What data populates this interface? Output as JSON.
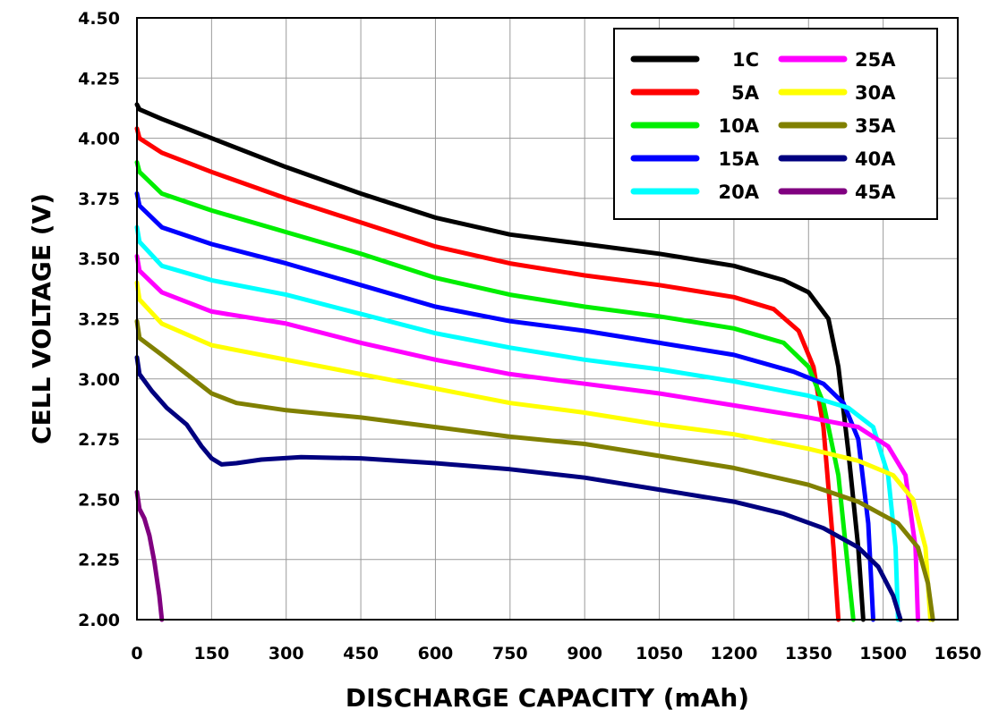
{
  "chart_data": {
    "type": "line",
    "title": "",
    "xlabel": "DISCHARGE CAPACITY (mAh)",
    "ylabel": "CELL VOLTAGE (V)",
    "xlim": [
      0,
      1650
    ],
    "ylim": [
      2.0,
      4.5
    ],
    "xticks": [
      0,
      150,
      300,
      450,
      600,
      750,
      900,
      1050,
      1200,
      1350,
      1500,
      1650
    ],
    "yticks": [
      "2.00",
      "2.25",
      "2.50",
      "2.75",
      "3.00",
      "3.25",
      "3.50",
      "3.75",
      "4.00",
      "4.25",
      "4.50"
    ],
    "grid": true,
    "legend_position": "top-right",
    "series": [
      {
        "name": "1C",
        "color": "#000000",
        "points": [
          [
            0,
            4.14
          ],
          [
            5,
            4.12
          ],
          [
            50,
            4.08
          ],
          [
            150,
            4.0
          ],
          [
            300,
            3.88
          ],
          [
            450,
            3.77
          ],
          [
            600,
            3.67
          ],
          [
            750,
            3.6
          ],
          [
            900,
            3.56
          ],
          [
            1050,
            3.52
          ],
          [
            1200,
            3.47
          ],
          [
            1300,
            3.41
          ],
          [
            1350,
            3.36
          ],
          [
            1390,
            3.25
          ],
          [
            1410,
            3.05
          ],
          [
            1430,
            2.7
          ],
          [
            1450,
            2.3
          ],
          [
            1460,
            2.0
          ]
        ]
      },
      {
        "name": "5A",
        "color": "#ff0000",
        "points": [
          [
            0,
            4.04
          ],
          [
            5,
            4.0
          ],
          [
            50,
            3.94
          ],
          [
            150,
            3.86
          ],
          [
            300,
            3.75
          ],
          [
            450,
            3.65
          ],
          [
            600,
            3.55
          ],
          [
            750,
            3.48
          ],
          [
            900,
            3.43
          ],
          [
            1050,
            3.39
          ],
          [
            1200,
            3.34
          ],
          [
            1280,
            3.29
          ],
          [
            1330,
            3.2
          ],
          [
            1360,
            3.05
          ],
          [
            1380,
            2.8
          ],
          [
            1400,
            2.3
          ],
          [
            1410,
            2.0
          ]
        ]
      },
      {
        "name": "10A",
        "color": "#00ee00",
        "points": [
          [
            0,
            3.9
          ],
          [
            5,
            3.86
          ],
          [
            50,
            3.77
          ],
          [
            150,
            3.7
          ],
          [
            300,
            3.61
          ],
          [
            450,
            3.52
          ],
          [
            600,
            3.42
          ],
          [
            750,
            3.35
          ],
          [
            900,
            3.3
          ],
          [
            1050,
            3.26
          ],
          [
            1200,
            3.21
          ],
          [
            1300,
            3.15
          ],
          [
            1350,
            3.05
          ],
          [
            1380,
            2.9
          ],
          [
            1410,
            2.6
          ],
          [
            1430,
            2.2
          ],
          [
            1440,
            2.0
          ]
        ]
      },
      {
        "name": "15A",
        "color": "#0000ff",
        "points": [
          [
            0,
            3.77
          ],
          [
            5,
            3.72
          ],
          [
            50,
            3.63
          ],
          [
            150,
            3.56
          ],
          [
            300,
            3.48
          ],
          [
            450,
            3.39
          ],
          [
            600,
            3.3
          ],
          [
            750,
            3.24
          ],
          [
            900,
            3.2
          ],
          [
            1050,
            3.15
          ],
          [
            1200,
            3.1
          ],
          [
            1320,
            3.03
          ],
          [
            1380,
            2.98
          ],
          [
            1420,
            2.9
          ],
          [
            1450,
            2.75
          ],
          [
            1470,
            2.4
          ],
          [
            1480,
            2.0
          ]
        ]
      },
      {
        "name": "20A",
        "color": "#00ffff",
        "points": [
          [
            0,
            3.63
          ],
          [
            5,
            3.57
          ],
          [
            50,
            3.47
          ],
          [
            150,
            3.41
          ],
          [
            300,
            3.35
          ],
          [
            450,
            3.27
          ],
          [
            600,
            3.19
          ],
          [
            750,
            3.13
          ],
          [
            900,
            3.08
          ],
          [
            1050,
            3.04
          ],
          [
            1200,
            2.99
          ],
          [
            1350,
            2.93
          ],
          [
            1430,
            2.88
          ],
          [
            1480,
            2.8
          ],
          [
            1510,
            2.6
          ],
          [
            1525,
            2.3
          ],
          [
            1530,
            2.0
          ]
        ]
      },
      {
        "name": "25A",
        "color": "#ff00ff",
        "points": [
          [
            0,
            3.51
          ],
          [
            5,
            3.45
          ],
          [
            50,
            3.36
          ],
          [
            150,
            3.28
          ],
          [
            300,
            3.23
          ],
          [
            450,
            3.15
          ],
          [
            600,
            3.08
          ],
          [
            750,
            3.02
          ],
          [
            900,
            2.98
          ],
          [
            1050,
            2.94
          ],
          [
            1200,
            2.89
          ],
          [
            1350,
            2.84
          ],
          [
            1450,
            2.8
          ],
          [
            1510,
            2.72
          ],
          [
            1545,
            2.6
          ],
          [
            1565,
            2.3
          ],
          [
            1570,
            2.0
          ]
        ]
      },
      {
        "name": "30A",
        "color": "#ffff00",
        "points": [
          [
            0,
            3.4
          ],
          [
            5,
            3.33
          ],
          [
            50,
            3.23
          ],
          [
            150,
            3.14
          ],
          [
            300,
            3.08
          ],
          [
            450,
            3.02
          ],
          [
            600,
            2.96
          ],
          [
            750,
            2.9
          ],
          [
            900,
            2.86
          ],
          [
            1050,
            2.81
          ],
          [
            1200,
            2.77
          ],
          [
            1350,
            2.71
          ],
          [
            1450,
            2.66
          ],
          [
            1520,
            2.6
          ],
          [
            1560,
            2.5
          ],
          [
            1585,
            2.3
          ],
          [
            1595,
            2.0
          ]
        ]
      },
      {
        "name": "35A",
        "color": "#808000",
        "points": [
          [
            0,
            3.24
          ],
          [
            5,
            3.17
          ],
          [
            50,
            3.1
          ],
          [
            100,
            3.02
          ],
          [
            150,
            2.94
          ],
          [
            200,
            2.9
          ],
          [
            300,
            2.87
          ],
          [
            450,
            2.84
          ],
          [
            600,
            2.8
          ],
          [
            750,
            2.76
          ],
          [
            900,
            2.73
          ],
          [
            1050,
            2.68
          ],
          [
            1200,
            2.63
          ],
          [
            1350,
            2.56
          ],
          [
            1450,
            2.49
          ],
          [
            1530,
            2.4
          ],
          [
            1570,
            2.3
          ],
          [
            1590,
            2.15
          ],
          [
            1600,
            2.0
          ]
        ]
      },
      {
        "name": "40A",
        "color": "#00007f",
        "points": [
          [
            0,
            3.09
          ],
          [
            5,
            3.02
          ],
          [
            30,
            2.95
          ],
          [
            60,
            2.88
          ],
          [
            100,
            2.81
          ],
          [
            130,
            2.72
          ],
          [
            150,
            2.67
          ],
          [
            170,
            2.645
          ],
          [
            200,
            2.65
          ],
          [
            250,
            2.665
          ],
          [
            330,
            2.675
          ],
          [
            450,
            2.67
          ],
          [
            600,
            2.65
          ],
          [
            750,
            2.625
          ],
          [
            900,
            2.59
          ],
          [
            1050,
            2.54
          ],
          [
            1200,
            2.49
          ],
          [
            1300,
            2.44
          ],
          [
            1380,
            2.38
          ],
          [
            1450,
            2.3
          ],
          [
            1490,
            2.22
          ],
          [
            1520,
            2.1
          ],
          [
            1535,
            2.0
          ]
        ]
      },
      {
        "name": "45A",
        "color": "#800080",
        "points": [
          [
            0,
            2.53
          ],
          [
            5,
            2.46
          ],
          [
            15,
            2.42
          ],
          [
            25,
            2.35
          ],
          [
            35,
            2.24
          ],
          [
            45,
            2.1
          ],
          [
            50,
            2.0
          ]
        ]
      }
    ]
  }
}
